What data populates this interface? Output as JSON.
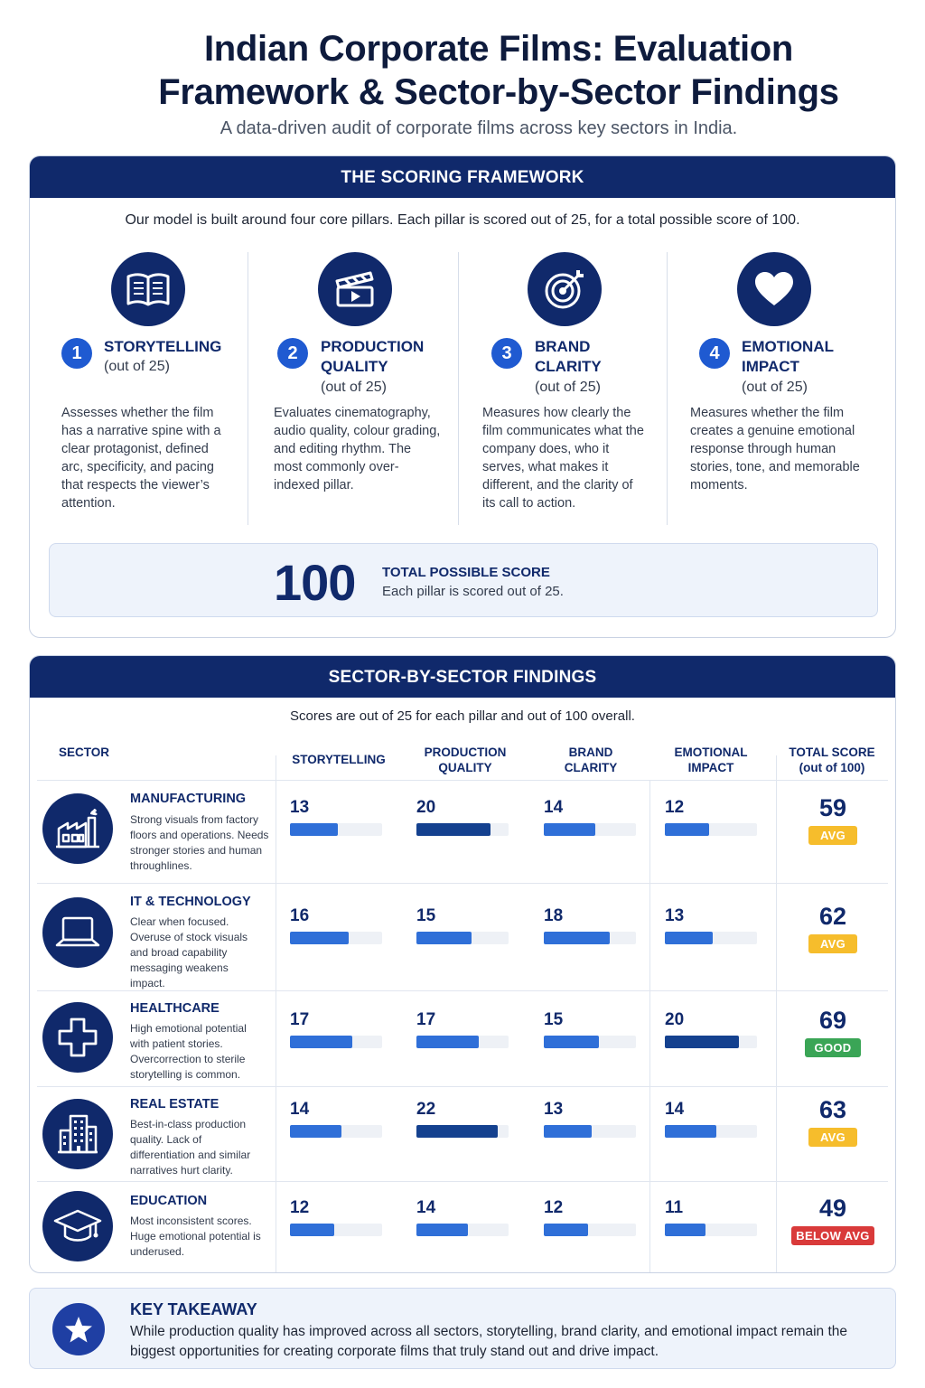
{
  "header": {
    "title": "Indian Corporate Films: Evaluation Framework & Sector-by-Sector Findings",
    "subtitle": "A data-driven audit of corporate films across key sectors in India."
  },
  "framework": {
    "heading": "THE SCORING FRAMEWORK",
    "intro": "Our model is built around four core pillars. Each pillar is scored out of 25, for a total possible score of 100.",
    "pillars": [
      {
        "number": "1",
        "icon": "open-book-icon",
        "name_line1": "STORYTELLING",
        "name_line2": "",
        "sub": "(out of 25)",
        "description": "Assesses whether the film has a narrative spine with a clear protagonist, defined arc, specificity, and pacing that respects the viewer’s attention."
      },
      {
        "number": "2",
        "icon": "clapperboard-icon",
        "name_line1": "PRODUCTION",
        "name_line2": "QUALITY",
        "sub": "(out of 25)",
        "description": "Evaluates cinematography, audio quality, colour grading, and editing rhythm. The most commonly over-indexed pillar."
      },
      {
        "number": "3",
        "icon": "target-icon",
        "name_line1": "BRAND",
        "name_line2": "CLARITY",
        "sub": "(out of 25)",
        "description": "Measures how clearly the film communicates what the company does, who it serves, what makes it different, and the clarity of its call to action."
      },
      {
        "number": "4",
        "icon": "heart-icon",
        "name_line1": "EMOTIONAL",
        "name_line2": "IMPACT",
        "sub": "(out of 25)",
        "description": "Measures whether the film creates a genuine emotional response through human stories, tone, and memorable moments."
      }
    ],
    "total": {
      "value": "100",
      "label": "TOTAL POSSIBLE SCORE",
      "note": "Each pillar is scored out of 25."
    }
  },
  "sectors": {
    "heading": "SECTOR-BY-SECTOR FINDINGS",
    "intro": "Scores are out of 25 for each pillar and out of 100 overall.",
    "columns": {
      "sector": "SECTOR",
      "storytelling": "STORYTELLING",
      "production_1": "PRODUCTION",
      "production_2": "QUALITY",
      "brand_1": "BRAND",
      "brand_2": "CLARITY",
      "emotional_1": "EMOTIONAL",
      "emotional_2": "IMPACT",
      "total_1": "TOTAL SCORE",
      "total_2": "(out of 100)"
    },
    "pillar_max": 25,
    "badge_colors": {
      "AVG": "#f6bd2c",
      "GOOD": "#3aa556",
      "BELOW AVG": "#d93a3a"
    },
    "rows": [
      {
        "icon": "factory-icon",
        "name": "MANUFACTURING",
        "description": "Strong visuals from factory floors and operations. Needs stronger stories and human throughlines.",
        "scores": [
          13,
          20,
          14,
          12
        ],
        "total": "59",
        "badge": "AVG"
      },
      {
        "icon": "laptop-icon",
        "name": "IT & TECHNOLOGY",
        "description": "Clear when focused. Overuse of stock visuals and broad capability messaging weakens impact.",
        "scores": [
          16,
          15,
          18,
          13
        ],
        "total": "62",
        "badge": "AVG"
      },
      {
        "icon": "medical-cross-icon",
        "name": "HEALTHCARE",
        "description": "High emotional potential with patient stories. Overcorrection to sterile storytelling is common.",
        "scores": [
          17,
          17,
          15,
          20
        ],
        "total": "69",
        "badge": "GOOD"
      },
      {
        "icon": "building-icon",
        "name": "REAL ESTATE",
        "description": "Best-in-class production quality. Lack of differentiation and similar narratives hurt clarity.",
        "scores": [
          14,
          22,
          13,
          14
        ],
        "total": "63",
        "badge": "AVG"
      },
      {
        "icon": "graduation-cap-icon",
        "name": "EDUCATION",
        "description": "Most inconsistent scores. Huge emotional potential is underused.",
        "scores": [
          12,
          14,
          12,
          11
        ],
        "total": "49",
        "badge": "BELOW AVG"
      }
    ]
  },
  "takeaway": {
    "icon": "star-icon",
    "title": "KEY TAKEAWAY",
    "text": "While production quality has improved across all sectors, storytelling, brand clarity, and emotional impact remain the biggest opportunities for creating corporate films that truly stand out and drive impact."
  }
}
